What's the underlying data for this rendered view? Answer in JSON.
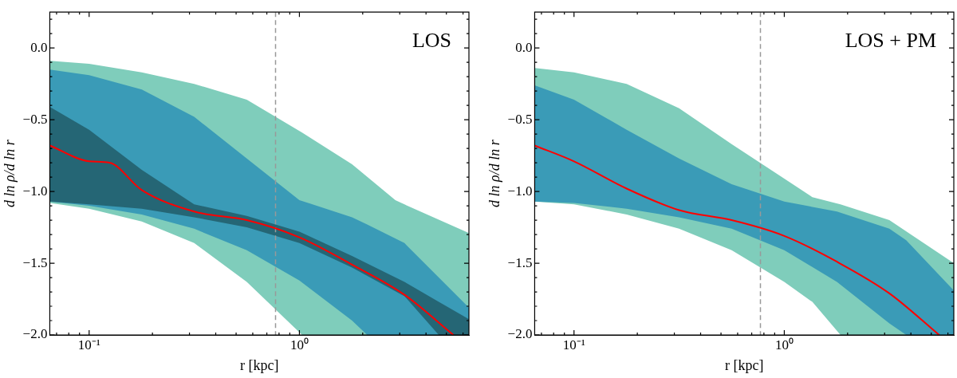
{
  "chart_data": [
    {
      "type": "line",
      "annotations": [
        "LOS"
      ],
      "xlabel": "r [kpc]",
      "ylabel": "d ln ρ/d ln r",
      "log": "x",
      "xlim": [
        0.065,
        6.4
      ],
      "ylim": [
        -2.0,
        0.25
      ],
      "xticks": [
        {
          "value": 0.07,
          "label": null
        },
        {
          "value": 0.08,
          "label": null
        },
        {
          "value": 0.09,
          "label": null
        },
        {
          "value": 0.1,
          "label": "10⁻¹"
        },
        {
          "value": 0.2,
          "label": null
        },
        {
          "value": 0.3,
          "label": null
        },
        {
          "value": 0.4,
          "label": null
        },
        {
          "value": 0.5,
          "label": null
        },
        {
          "value": 0.6,
          "label": null
        },
        {
          "value": 0.7,
          "label": null
        },
        {
          "value": 0.8,
          "label": null
        },
        {
          "value": 0.9,
          "label": null
        },
        {
          "value": 1,
          "label": "10⁰"
        },
        {
          "value": 2,
          "label": null
        },
        {
          "value": 3,
          "label": null
        },
        {
          "value": 4,
          "label": null
        },
        {
          "value": 5,
          "label": null
        },
        {
          "value": 6,
          "label": null
        }
      ],
      "yticks": [
        {
          "value": -2.0,
          "label": "−2.0"
        },
        {
          "value": -1.9,
          "label": null
        },
        {
          "value": -1.8,
          "label": null
        },
        {
          "value": -1.7,
          "label": null
        },
        {
          "value": -1.6,
          "label": null
        },
        {
          "value": -1.5,
          "label": "−1.5"
        },
        {
          "value": -1.4,
          "label": null
        },
        {
          "value": -1.3,
          "label": null
        },
        {
          "value": -1.2,
          "label": null
        },
        {
          "value": -1.1,
          "label": null
        },
        {
          "value": -1.0,
          "label": "−1.0"
        },
        {
          "value": -0.9,
          "label": null
        },
        {
          "value": -0.8,
          "label": null
        },
        {
          "value": -0.7,
          "label": null
        },
        {
          "value": -0.6,
          "label": null
        },
        {
          "value": -0.5,
          "label": "−0.5"
        },
        {
          "value": -0.4,
          "label": null
        },
        {
          "value": -0.3,
          "label": null
        },
        {
          "value": -0.2,
          "label": null
        },
        {
          "value": -0.1,
          "label": null
        },
        {
          "value": 0.0,
          "label": "0.0"
        },
        {
          "value": 0.1,
          "label": null
        },
        {
          "value": 0.2,
          "label": null
        }
      ],
      "ref_lines": [
        {
          "axis": "x",
          "value": 0.77,
          "color": "#999999",
          "line_style": "dashed"
        }
      ],
      "series": [
        {
          "color": "#7fcdbb",
          "x": [
            0.065,
            0.1,
            0.178,
            0.316,
            0.562,
            1.03,
            1.78,
            2.86,
            3.16,
            6.4
          ],
          "values": [
            null,
            null,
            null,
            null,
            null,
            null,
            null,
            null,
            null,
            null
          ],
          "upper": [
            -0.09,
            -0.11,
            -0.17,
            -0.25,
            -0.36,
            -0.59,
            -0.81,
            -1.06,
            -1.09,
            -1.29
          ],
          "lower": [
            -1.08,
            -1.12,
            -1.21,
            -1.36,
            -1.63,
            -2.0,
            -2.0,
            -2.0,
            -2.0,
            -2.0
          ]
        },
        {
          "color": "#3a9bb7",
          "x": [
            0.065,
            0.1,
            0.178,
            0.316,
            0.562,
            1,
            1.78,
            2.1,
            3.16,
            6.4
          ],
          "values": [
            null,
            null,
            null,
            null,
            null,
            null,
            null,
            null,
            null,
            null
          ],
          "upper": [
            -0.15,
            -0.19,
            -0.29,
            -0.48,
            -0.77,
            -1.06,
            -1.18,
            -1.23,
            -1.36,
            -1.81
          ],
          "lower": [
            -1.07,
            -1.1,
            -1.16,
            -1.26,
            -1.41,
            -1.62,
            -1.9,
            -2.0,
            -2.0,
            -2.0
          ]
        },
        {
          "color": "#256675",
          "x": [
            0.065,
            0.1,
            0.178,
            0.316,
            0.562,
            1,
            1.78,
            3.16,
            4.6,
            6.4
          ],
          "values": [
            null,
            null,
            null,
            null,
            null,
            null,
            null,
            null,
            null,
            null
          ],
          "upper": [
            -0.41,
            -0.57,
            -0.85,
            -1.09,
            -1.17,
            -1.28,
            -1.45,
            -1.63,
            -1.77,
            -1.89
          ],
          "lower": [
            -1.07,
            -1.09,
            -1.12,
            -1.18,
            -1.25,
            -1.36,
            -1.53,
            -1.73,
            -2.0,
            -2.0
          ]
        },
        {
          "color": "#ff0000",
          "x": [
            0.065,
            0.1,
            0.125,
            0.178,
            0.316,
            0.562,
            1,
            1.78,
            3.16,
            5.4
          ],
          "values": [
            -0.68,
            -0.79,
            -0.8,
            -0.99,
            -1.14,
            -1.2,
            -1.32,
            -1.51,
            -1.72,
            -2.0
          ]
        }
      ]
    },
    {
      "type": "line",
      "annotations": [
        "LOS + PM"
      ],
      "xlabel": "r [kpc]",
      "ylabel": "d ln ρ/d ln r",
      "log": "x",
      "xlim": [
        0.065,
        6.4
      ],
      "ylim": [
        -2.0,
        0.25
      ],
      "xticks": [
        {
          "value": 0.07,
          "label": null
        },
        {
          "value": 0.08,
          "label": null
        },
        {
          "value": 0.09,
          "label": null
        },
        {
          "value": 0.1,
          "label": "10⁻¹"
        },
        {
          "value": 0.2,
          "label": null
        },
        {
          "value": 0.3,
          "label": null
        },
        {
          "value": 0.4,
          "label": null
        },
        {
          "value": 0.5,
          "label": null
        },
        {
          "value": 0.6,
          "label": null
        },
        {
          "value": 0.7,
          "label": null
        },
        {
          "value": 0.8,
          "label": null
        },
        {
          "value": 0.9,
          "label": null
        },
        {
          "value": 1,
          "label": "10⁰"
        },
        {
          "value": 2,
          "label": null
        },
        {
          "value": 3,
          "label": null
        },
        {
          "value": 4,
          "label": null
        },
        {
          "value": 5,
          "label": null
        },
        {
          "value": 6,
          "label": null
        }
      ],
      "yticks": [
        {
          "value": -2.0,
          "label": "−2.0"
        },
        {
          "value": -1.9,
          "label": null
        },
        {
          "value": -1.8,
          "label": null
        },
        {
          "value": -1.7,
          "label": null
        },
        {
          "value": -1.6,
          "label": null
        },
        {
          "value": -1.5,
          "label": "−1.5"
        },
        {
          "value": -1.4,
          "label": null
        },
        {
          "value": -1.3,
          "label": null
        },
        {
          "value": -1.2,
          "label": null
        },
        {
          "value": -1.1,
          "label": null
        },
        {
          "value": -1.0,
          "label": "−1.0"
        },
        {
          "value": -0.9,
          "label": null
        },
        {
          "value": -0.8,
          "label": null
        },
        {
          "value": -0.7,
          "label": null
        },
        {
          "value": -0.6,
          "label": null
        },
        {
          "value": -0.5,
          "label": "−0.5"
        },
        {
          "value": -0.4,
          "label": null
        },
        {
          "value": -0.3,
          "label": null
        },
        {
          "value": -0.2,
          "label": null
        },
        {
          "value": -0.1,
          "label": null
        },
        {
          "value": 0.0,
          "label": "0.0"
        },
        {
          "value": 0.1,
          "label": null
        },
        {
          "value": 0.2,
          "label": null
        }
      ],
      "ref_lines": [
        {
          "axis": "x",
          "value": 0.77,
          "color": "#999999",
          "line_style": "dashed"
        }
      ],
      "series": [
        {
          "color": "#7fcdbb",
          "x": [
            0.065,
            0.1,
            0.178,
            0.316,
            0.562,
            1,
            1.36,
            1.85,
            3.16,
            6.4
          ],
          "values": [
            null,
            null,
            null,
            null,
            null,
            null,
            null,
            null,
            null,
            null
          ],
          "upper": [
            -0.14,
            -0.17,
            -0.25,
            -0.42,
            -0.67,
            -0.91,
            -1.04,
            -1.09,
            -1.2,
            -1.5
          ],
          "lower": [
            -1.07,
            -1.09,
            -1.16,
            -1.26,
            -1.41,
            -1.63,
            -1.77,
            -2.0,
            -2.0,
            -2.0
          ]
        },
        {
          "color": "#3a9bb7",
          "x": [
            0.065,
            0.1,
            0.178,
            0.316,
            0.562,
            1,
            1.78,
            3.16,
            3.8,
            6.4
          ],
          "values": [
            null,
            null,
            null,
            null,
            null,
            null,
            null,
            null,
            null,
            null
          ],
          "upper": [
            -0.26,
            -0.36,
            -0.57,
            -0.77,
            -0.95,
            -1.07,
            -1.14,
            -1.26,
            -1.34,
            -1.69
          ],
          "lower": [
            -1.07,
            -1.08,
            -1.12,
            -1.18,
            -1.26,
            -1.41,
            -1.63,
            -1.92,
            -2.0,
            -2.0
          ]
        },
        {
          "color": "#ff0000",
          "x": [
            0.065,
            0.1,
            0.178,
            0.316,
            0.562,
            1,
            1.78,
            3.16,
            5.45
          ],
          "values": [
            -0.68,
            -0.79,
            -0.98,
            -1.13,
            -1.2,
            -1.31,
            -1.49,
            -1.71,
            -2.0
          ]
        }
      ]
    }
  ]
}
